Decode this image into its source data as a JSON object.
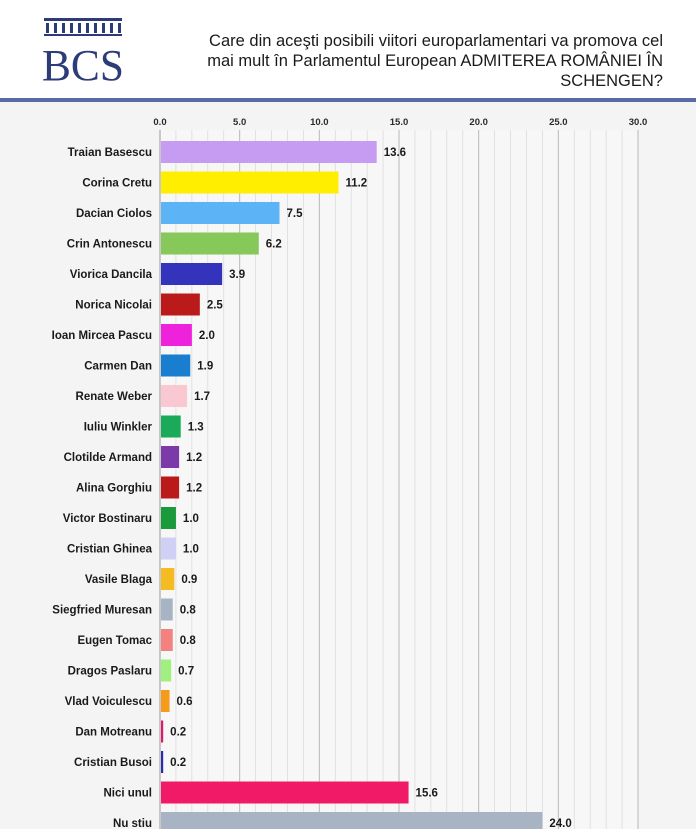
{
  "logo": {
    "text": "BCS",
    "color": "#2c3c78"
  },
  "chart_data": {
    "type": "bar",
    "orientation": "horizontal",
    "title": "Care din aceşti posibili viitori europarlamentari va promova cel mai mult în Parlamentul European ADMITEREA ROMÂNIEI ÎN SCHENGEN?",
    "title_lines": [
      "Care din aceşti posibili viitori europarlamentari va promova cel",
      "mai mult în Parlamentul European ADMITEREA ROMÂNIEI ÎN",
      "SCHENGEN?"
    ],
    "xlim": [
      0,
      30
    ],
    "x_ticks": [
      "0.0",
      "5.0",
      "10.0",
      "15.0",
      "20.0",
      "25.0",
      "30.0"
    ],
    "x_tick_values": [
      0,
      5,
      10,
      15,
      20,
      25,
      30
    ],
    "grid": true,
    "axis_position": "top",
    "categories": [
      "Traian Basescu",
      "Corina Cretu",
      "Dacian Ciolos",
      "Crin Antonescu",
      "Viorica Dancila",
      "Norica Nicolai",
      "Ioan Mircea Pascu",
      "Carmen Dan",
      "Renate Weber",
      "Iuliu Winkler",
      "Clotilde Armand",
      "Alina Gorghiu",
      "Victor Bostinaru",
      "Cristian Ghinea",
      "Vasile Blaga",
      "Siegfried Muresan",
      "Eugen Tomac",
      "Dragos Paslaru",
      "Vlad Voiculescu",
      "Dan Motreanu",
      "Cristian Busoi",
      "Nici unul",
      "Nu stiu"
    ],
    "values": [
      13.6,
      11.2,
      7.5,
      6.2,
      3.9,
      2.5,
      2.0,
      1.9,
      1.7,
      1.3,
      1.2,
      1.2,
      1.0,
      1.0,
      0.9,
      0.8,
      0.8,
      0.7,
      0.6,
      0.2,
      0.2,
      15.6,
      24.0
    ],
    "value_labels": [
      "13.6",
      "11.2",
      "7.5",
      "6.2",
      "3.9",
      "2.5",
      "2.0",
      "1.9",
      "1.7",
      "1.3",
      "1.2",
      "1.2",
      "1.0",
      "1.0",
      "0.9",
      "0.8",
      "0.8",
      "0.7",
      "0.6",
      "0.2",
      "0.2",
      "15.6",
      "24.0"
    ],
    "colors": [
      "#c59cf2",
      "#ffee00",
      "#5cb3f5",
      "#86c95a",
      "#3333bb",
      "#bb1a1a",
      "#ee22dd",
      "#1a7ed0",
      "#f9c8d0",
      "#1aaa5a",
      "#7a3aaa",
      "#bb1a1a",
      "#1a9a3a",
      "#d0d0f5",
      "#f5bb22",
      "#a8b4c4",
      "#f58080",
      "#a0f080",
      "#f59a1a",
      "#dd1a6a",
      "#2a2aaa",
      "#f01a66",
      "#a8b4c4"
    ]
  }
}
